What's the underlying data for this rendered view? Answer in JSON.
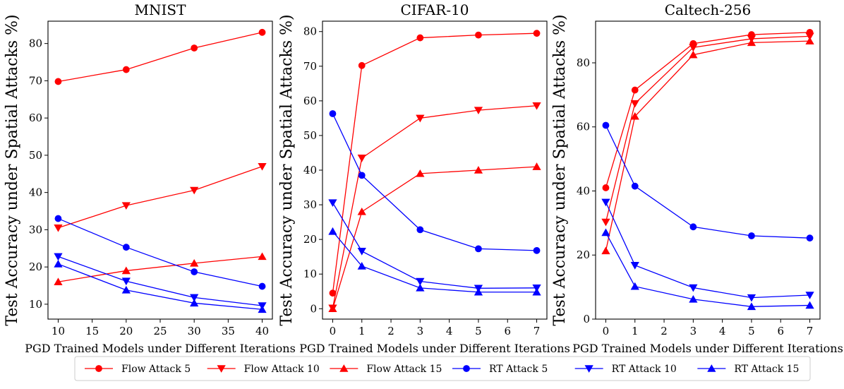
{
  "chart_data": [
    {
      "type": "line",
      "title": "MNIST",
      "xlabel": "PGD Trained Models under Different Iterations",
      "ylabel": "Test Accuracy under Spatial Attacks %)",
      "x": [
        10,
        20,
        30,
        40
      ],
      "xlim": [
        8.5,
        41.5
      ],
      "ylim": [
        6,
        86
      ],
      "xticks": [
        10,
        15,
        20,
        25,
        30,
        35,
        40
      ],
      "yticks": [
        10,
        20,
        30,
        40,
        50,
        60,
        70,
        80
      ],
      "series": [
        {
          "name": "Flow Attack 5",
          "values": [
            69.8,
            73.0,
            78.8,
            83.0
          ]
        },
        {
          "name": "Flow Attack 10",
          "values": [
            30.5,
            36.5,
            40.6,
            47.0
          ]
        },
        {
          "name": "Flow Attack 15",
          "values": [
            16.0,
            19.0,
            21.0,
            22.8
          ]
        },
        {
          "name": "RT Attack 5",
          "values": [
            33.0,
            25.3,
            18.7,
            14.8
          ]
        },
        {
          "name": "RT Attack 10",
          "values": [
            22.8,
            16.2,
            11.8,
            9.6
          ]
        },
        {
          "name": "RT Attack 15",
          "values": [
            20.8,
            13.8,
            10.3,
            8.6
          ]
        }
      ]
    },
    {
      "type": "line",
      "title": "CIFAR-10",
      "xlabel": "PGD Trained Models under Different Iterations",
      "ylabel": "Test Accuracy under Spatial Attacks %)",
      "x": [
        0,
        1,
        3,
        5,
        7
      ],
      "xlim": [
        -0.35,
        7.35
      ],
      "ylim": [
        -3,
        83
      ],
      "xticks": [
        0,
        1,
        2,
        3,
        4,
        5,
        6,
        7
      ],
      "yticks": [
        0,
        10,
        20,
        30,
        40,
        50,
        60,
        70,
        80
      ],
      "series": [
        {
          "name": "Flow Attack 5",
          "values": [
            4.5,
            70.2,
            78.2,
            79.0,
            79.5
          ]
        },
        {
          "name": "Flow Attack 10",
          "values": [
            0.2,
            43.5,
            55.0,
            57.3,
            58.6
          ]
        },
        {
          "name": "Flow Attack 15",
          "values": [
            0.0,
            28.0,
            39.0,
            40.0,
            41.0
          ]
        },
        {
          "name": "RT Attack 5",
          "values": [
            56.3,
            38.5,
            22.8,
            17.3,
            16.8
          ]
        },
        {
          "name": "RT Attack 10",
          "values": [
            30.6,
            16.6,
            7.9,
            5.9,
            6.0
          ]
        },
        {
          "name": "RT Attack 15",
          "values": [
            22.3,
            12.3,
            6.0,
            4.8,
            4.8
          ]
        }
      ]
    },
    {
      "type": "line",
      "title": "Caltech-256",
      "xlabel": "PGD Trained Models under Different Iterations",
      "ylabel": "Test Accuracy under Spatial Attacks %)",
      "x": [
        0,
        1,
        3,
        5,
        7
      ],
      "xlim": [
        -0.35,
        7.35
      ],
      "ylim": [
        0,
        93
      ],
      "xticks": [
        0,
        1,
        2,
        3,
        4,
        5,
        6,
        7
      ],
      "yticks": [
        0,
        20,
        40,
        60,
        80
      ],
      "series": [
        {
          "name": "Flow Attack 5",
          "values": [
            41.0,
            71.5,
            86.0,
            88.8,
            89.5
          ]
        },
        {
          "name": "Flow Attack 10",
          "values": [
            30.3,
            67.3,
            84.8,
            87.5,
            88.3
          ]
        },
        {
          "name": "Flow Attack 15",
          "values": [
            21.3,
            63.3,
            82.5,
            86.3,
            86.8
          ]
        },
        {
          "name": "RT Attack 5",
          "values": [
            60.5,
            41.5,
            28.8,
            26.0,
            25.3
          ]
        },
        {
          "name": "RT Attack 10",
          "values": [
            36.5,
            16.8,
            9.8,
            6.7,
            7.5
          ]
        },
        {
          "name": "RT Attack 15",
          "values": [
            27.0,
            10.2,
            6.2,
            3.9,
            4.3
          ]
        }
      ]
    }
  ],
  "legend": [
    {
      "name": "Flow Attack 5",
      "color": "#ff0000",
      "marker": "circle"
    },
    {
      "name": "Flow Attack 10",
      "color": "#ff0000",
      "marker": "triangle-down"
    },
    {
      "name": "Flow Attack 15",
      "color": "#ff0000",
      "marker": "triangle-up"
    },
    {
      "name": "RT Attack 5",
      "color": "#0000ff",
      "marker": "circle"
    },
    {
      "name": "RT Attack 10",
      "color": "#0000ff",
      "marker": "triangle-down"
    },
    {
      "name": "RT Attack 15",
      "color": "#0000ff",
      "marker": "triangle-up"
    }
  ]
}
